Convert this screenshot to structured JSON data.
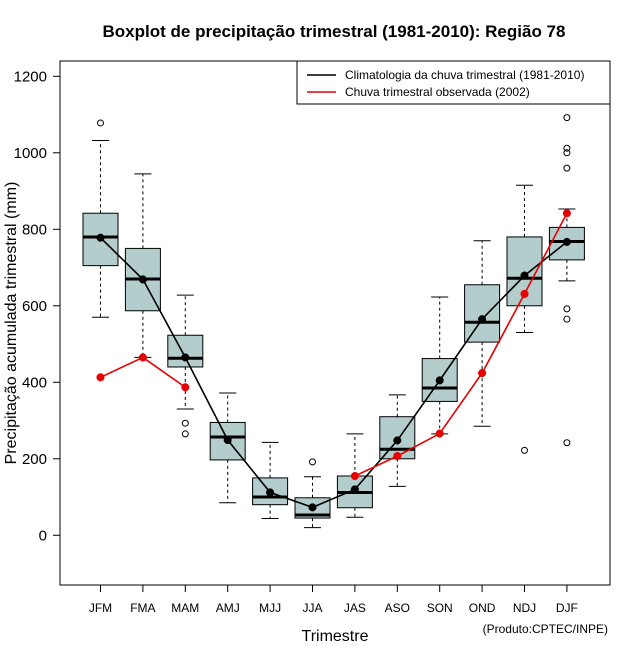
{
  "colors": {
    "box_fill": "#b3cccc",
    "climatology_line": "#000000",
    "observed_line": "#e60000"
  },
  "chart_data": {
    "type": "boxplot",
    "title": "Boxplot de precipitação trimestral (1981-2010): Região 78",
    "xlabel": "Trimestre",
    "ylabel": "Precipitação acumulada trimestral (mm)",
    "credit": "(Produto:CPTEC/INPE)",
    "ylim": [
      -130,
      1240
    ],
    "yticks": [
      0,
      200,
      400,
      600,
      800,
      1000,
      1200
    ],
    "categories": [
      "JFM",
      "FMA",
      "MAM",
      "AMJ",
      "MJJ",
      "JJA",
      "JAS",
      "ASO",
      "SON",
      "OND",
      "NDJ",
      "DJF"
    ],
    "boxes": [
      {
        "whisker_low": 570,
        "q1": 705,
        "median": 780,
        "q3": 842,
        "whisker_high": 1032,
        "outliers": [
          1078
        ]
      },
      {
        "whisker_low": 465,
        "q1": 587,
        "median": 670,
        "q3": 750,
        "whisker_high": 945,
        "outliers": []
      },
      {
        "whisker_low": 330,
        "q1": 440,
        "median": 463,
        "q3": 523,
        "whisker_high": 628,
        "outliers": [
          293,
          265
        ]
      },
      {
        "whisker_low": 85,
        "q1": 197,
        "median": 257,
        "q3": 295,
        "whisker_high": 372,
        "outliers": []
      },
      {
        "whisker_low": 44,
        "q1": 80,
        "median": 100,
        "q3": 150,
        "whisker_high": 243,
        "outliers": []
      },
      {
        "whisker_low": 20,
        "q1": 45,
        "median": 53,
        "q3": 98,
        "whisker_high": 153,
        "outliers": [
          192
        ]
      },
      {
        "whisker_low": 47,
        "q1": 72,
        "median": 112,
        "q3": 155,
        "whisker_high": 265,
        "outliers": []
      },
      {
        "whisker_low": 128,
        "q1": 200,
        "median": 225,
        "q3": 310,
        "whisker_high": 367,
        "outliers": []
      },
      {
        "whisker_low": 265,
        "q1": 350,
        "median": 385,
        "q3": 462,
        "whisker_high": 623,
        "outliers": []
      },
      {
        "whisker_low": 285,
        "q1": 505,
        "median": 557,
        "q3": 655,
        "whisker_high": 770,
        "outliers": []
      },
      {
        "whisker_low": 530,
        "q1": 600,
        "median": 672,
        "q3": 780,
        "whisker_high": 915,
        "outliers": [
          222
        ]
      },
      {
        "whisker_low": 665,
        "q1": 720,
        "median": 768,
        "q3": 805,
        "whisker_high": 853,
        "outliers": [
          1092,
          1012,
          1000,
          960,
          592,
          565,
          242
        ]
      }
    ],
    "series": [
      {
        "name": "Climatologia da chuva trimestral (1981-2010)",
        "values": [
          778,
          669,
          465,
          249,
          112,
          73,
          120,
          248,
          405,
          565,
          679,
          767
        ]
      },
      {
        "name": "Chuva trimestral observada (2002)",
        "values": [
          413,
          465,
          387,
          null,
          null,
          null,
          155,
          207,
          266,
          424,
          631,
          842
        ]
      }
    ],
    "legend_position": "top-right"
  }
}
